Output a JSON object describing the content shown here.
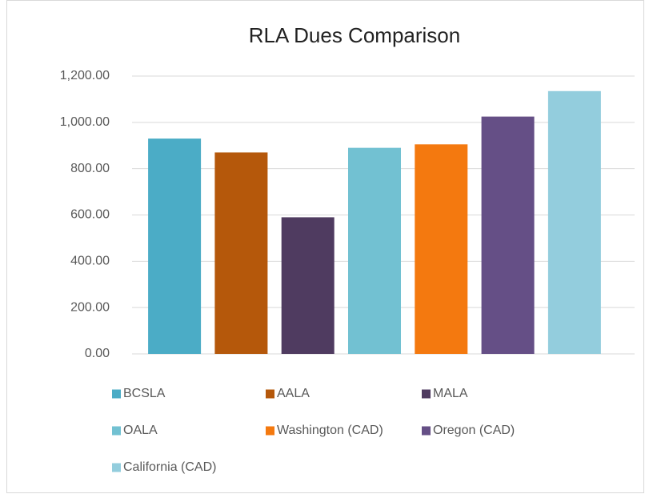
{
  "chart_data": {
    "type": "bar",
    "title": "RLA Dues Comparison",
    "categories": [
      null
    ],
    "series": [
      {
        "name": "BCSLA",
        "color": "#4bacc6",
        "values": [
          930
        ]
      },
      {
        "name": "AALA",
        "color": "#b5580b",
        "values": [
          870
        ]
      },
      {
        "name": "MALA",
        "color": "#4f3b60",
        "values": [
          590
        ]
      },
      {
        "name": "OALA",
        "color": "#72c1d2",
        "values": [
          890
        ]
      },
      {
        "name": "Washington (CAD)",
        "color": "#f4790f",
        "values": [
          905
        ]
      },
      {
        "name": "Oregon (CAD)",
        "color": "#654f86",
        "values": [
          1025
        ]
      },
      {
        "name": "California (CAD)",
        "color": "#93cddd",
        "values": [
          1135
        ]
      }
    ],
    "ylim": [
      0,
      1200
    ],
    "yticks": [
      {
        "value": 0,
        "label": "0.00"
      },
      {
        "value": 200,
        "label": "200.00"
      },
      {
        "value": 400,
        "label": "400.00"
      },
      {
        "value": 600,
        "label": "600.00"
      },
      {
        "value": 800,
        "label": "800.00"
      },
      {
        "value": 1000,
        "label": "1,000.00"
      },
      {
        "value": 1200,
        "label": "1,200.00"
      }
    ],
    "grid": true,
    "legend": "bottom"
  }
}
